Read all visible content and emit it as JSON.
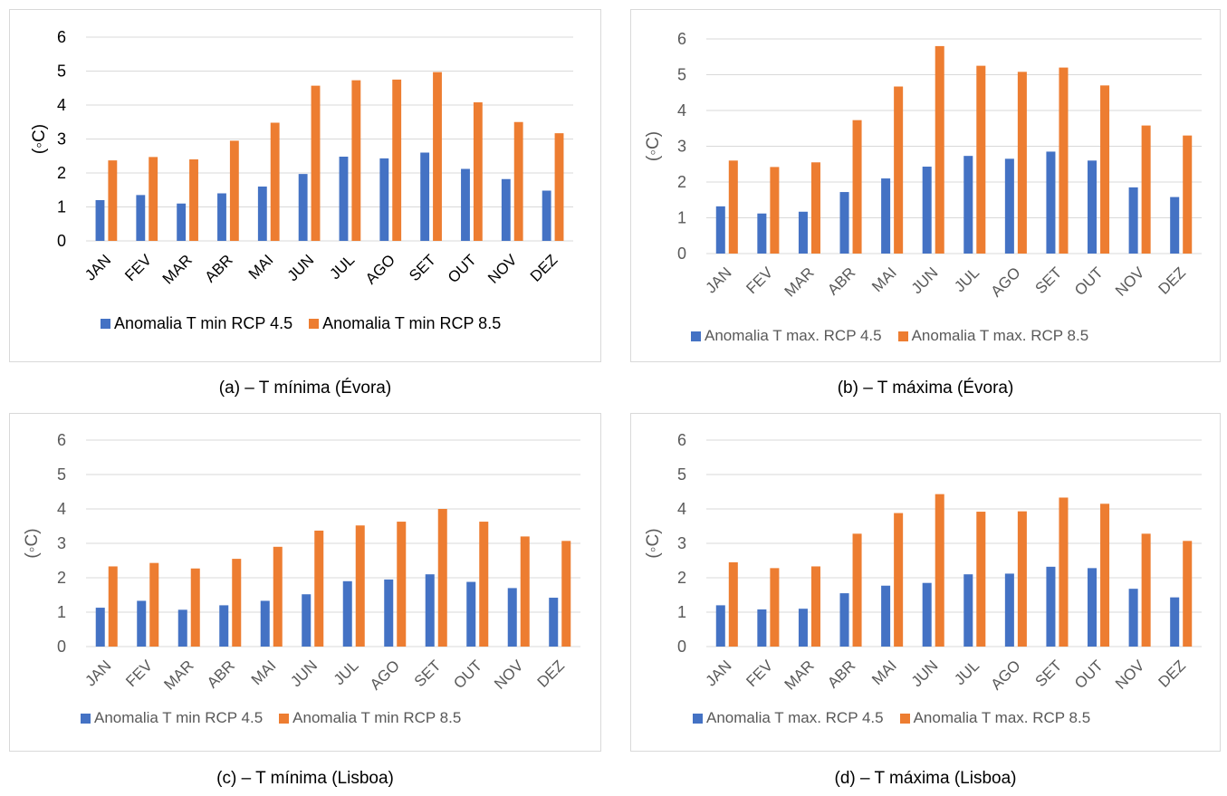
{
  "colors": {
    "rcp45": "#4472C4",
    "rcp85": "#ED7D31",
    "grid": "#d9d9d9",
    "axisText": "#595959"
  },
  "captions": {
    "a": "(a) – T mínima (Évora)",
    "b": "(b) – T máxima (Évora)",
    "c": "(c) – T mínima (Lisboa)",
    "d": "(d) – T máxima (Lisboa)"
  },
  "chart_data": [
    {
      "id": "a",
      "type": "bar",
      "title": "",
      "xlabel": "",
      "ylabel": "(◦C)",
      "ylim": [
        0,
        6
      ],
      "grid": true,
      "legend": "bottom",
      "categories": [
        "JAN",
        "FEV",
        "MAR",
        "ABR",
        "MAI",
        "JUN",
        "JUL",
        "AGO",
        "SET",
        "OUT",
        "NOV",
        "DEZ"
      ],
      "series": [
        {
          "name": "Anomalia T min RCP 4.5",
          "values": [
            1.2,
            1.35,
            1.1,
            1.4,
            1.6,
            1.97,
            2.48,
            2.43,
            2.6,
            2.12,
            1.82,
            1.48
          ]
        },
        {
          "name": "Anomalia T min RCP 8.5",
          "values": [
            2.37,
            2.47,
            2.4,
            2.95,
            3.48,
            4.57,
            4.73,
            4.75,
            4.97,
            4.08,
            3.5,
            3.17
          ]
        }
      ]
    },
    {
      "id": "b",
      "type": "bar",
      "title": "",
      "xlabel": "",
      "ylabel": "(◦C)",
      "ylim": [
        0,
        6
      ],
      "grid": true,
      "legend": "bottom",
      "categories": [
        "JAN",
        "FEV",
        "MAR",
        "ABR",
        "MAI",
        "JUN",
        "JUL",
        "AGO",
        "SET",
        "OUT",
        "NOV",
        "DEZ"
      ],
      "series": [
        {
          "name": "Anomalia T max. RCP 4.5",
          "values": [
            1.32,
            1.12,
            1.17,
            1.72,
            2.1,
            2.43,
            2.73,
            2.65,
            2.85,
            2.6,
            1.85,
            1.58
          ]
        },
        {
          "name": "Anomalia T max. RCP 8.5",
          "values": [
            2.6,
            2.42,
            2.55,
            3.73,
            4.67,
            5.8,
            5.25,
            5.08,
            5.2,
            4.7,
            3.58,
            3.3
          ]
        }
      ]
    },
    {
      "id": "c",
      "type": "bar",
      "title": "",
      "xlabel": "",
      "ylabel": "(◦C)",
      "ylim": [
        0,
        6
      ],
      "grid": true,
      "legend": "bottom",
      "categories": [
        "JAN",
        "FEV",
        "MAR",
        "ABR",
        "MAI",
        "JUN",
        "JUL",
        "AGO",
        "SET",
        "OUT",
        "NOV",
        "DEZ"
      ],
      "series": [
        {
          "name": "Anomalia T min RCP 4.5",
          "values": [
            1.13,
            1.33,
            1.07,
            1.2,
            1.33,
            1.52,
            1.9,
            1.95,
            2.1,
            1.88,
            1.7,
            1.42
          ]
        },
        {
          "name": "Anomalia T min RCP 8.5",
          "values": [
            2.33,
            2.43,
            2.27,
            2.55,
            2.9,
            3.37,
            3.52,
            3.63,
            4.0,
            3.63,
            3.2,
            3.07
          ]
        }
      ]
    },
    {
      "id": "d",
      "type": "bar",
      "title": "",
      "xlabel": "",
      "ylabel": "(◦C)",
      "ylim": [
        0,
        6
      ],
      "grid": true,
      "legend": "bottom",
      "categories": [
        "JAN",
        "FEV",
        "MAR",
        "ABR",
        "MAI",
        "JUN",
        "JUL",
        "AGO",
        "SET",
        "OUT",
        "NOV",
        "DEZ"
      ],
      "series": [
        {
          "name": "Anomalia T max. RCP 4.5",
          "values": [
            1.2,
            1.08,
            1.1,
            1.55,
            1.77,
            1.85,
            2.1,
            2.12,
            2.32,
            2.28,
            1.68,
            1.43
          ]
        },
        {
          "name": "Anomalia T max. RCP 8.5",
          "values": [
            2.45,
            2.28,
            2.33,
            3.28,
            3.88,
            4.43,
            3.92,
            3.93,
            4.33,
            4.15,
            3.28,
            3.07
          ]
        }
      ]
    }
  ]
}
